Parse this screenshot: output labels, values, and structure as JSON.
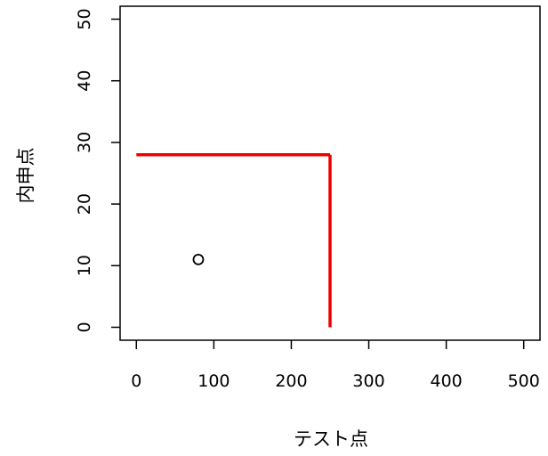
{
  "chart_data": {
    "type": "scatter",
    "title": "",
    "xlabel": "テスト点",
    "ylabel": "内申点",
    "xlim": [
      -21,
      521
    ],
    "ylim": [
      -2.1,
      52.1
    ],
    "x_ticks": [
      0,
      100,
      200,
      300,
      400,
      500
    ],
    "x_tick_labels": [
      "0",
      "100",
      "200",
      "300",
      "400",
      "500"
    ],
    "y_ticks": [
      0,
      10,
      20,
      30,
      40,
      50
    ],
    "y_tick_labels": [
      "0",
      "10",
      "20",
      "30",
      "40",
      "50"
    ],
    "grid": false,
    "points": [
      {
        "x": 80,
        "y": 11
      }
    ],
    "point_style": "open-circle",
    "threshold_lines": {
      "color": "#ee0000",
      "segments": [
        {
          "x": [
            0,
            250
          ],
          "y": [
            28,
            28
          ]
        },
        {
          "x": [
            250,
            250
          ],
          "y": [
            28,
            0
          ]
        }
      ]
    }
  }
}
